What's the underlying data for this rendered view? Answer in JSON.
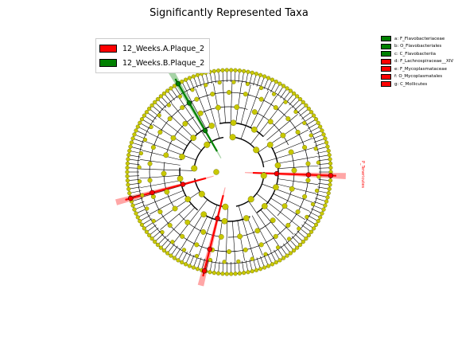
{
  "title": "Significantly Represented Taxa",
  "colors": {
    "group_a": "#ff0000",
    "group_b": "#008000",
    "node_default": "#c8c800",
    "node_edge": "#666600",
    "ring": "#000000"
  },
  "groups": [
    {
      "label": "12_Weeks.A.Plaque_2",
      "color": "#ff0000"
    },
    {
      "label": "12_Weeks.B.Plaque_2",
      "color": "#008000"
    }
  ],
  "taxa_legend": [
    {
      "label": "a: F_Flavobacteriaceae",
      "color": "#008000"
    },
    {
      "label": "b: O_Flavobacteriales",
      "color": "#008000"
    },
    {
      "label": "c: C_Flavobacteriia",
      "color": "#008000"
    },
    {
      "label": "d: F_Lachnospiraceae__XIV",
      "color": "#ff0000"
    },
    {
      "label": "e: F_Mycoplasmataceae",
      "color": "#ff0000"
    },
    {
      "label": "f: O_Mycoplasmatales",
      "color": "#ff0000"
    },
    {
      "label": "g: C_Mollicutes",
      "color": "#ff0000"
    }
  ],
  "highlights": [
    {
      "taxon": "c",
      "angle_deg": -120,
      "group": "B"
    },
    {
      "taxon": "d",
      "angle_deg": 165,
      "group": "A"
    },
    {
      "taxon": "g",
      "angle_deg": 2,
      "group": "A"
    },
    {
      "taxon": "e",
      "angle_deg": 104,
      "group": "A"
    }
  ],
  "clade_labels": [
    {
      "text": "P_Tenericutes",
      "group": "A"
    }
  ]
}
